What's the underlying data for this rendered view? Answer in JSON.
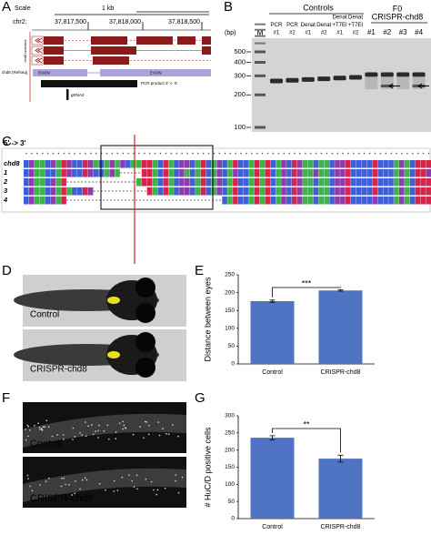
{
  "panel_labels": [
    "A",
    "B",
    "C",
    "D",
    "E",
    "F",
    "G"
  ],
  "genome_browser": {
    "scale_label": "Scale",
    "scale_bar": "1 kb",
    "chrom": "chr2:",
    "positions": [
      "37,817,500",
      "37,818,000",
      "37,818,500"
    ],
    "track_isoforms": "chd8 isoforms",
    "track_refseq": "chd8 (Refseq)",
    "exon_labels": [
      "EXON",
      "EXON"
    ],
    "pcr_product": "PCR product 3' <- 5'",
    "grna": "gRNA2"
  },
  "gel": {
    "group_controls": "Controls",
    "group_f0": "F0",
    "group_crispr": "CRISPR-chd8",
    "unit": "(bp)",
    "marker": "M",
    "lanes": [
      [
        "PCR",
        "#1"
      ],
      [
        "PCR",
        "#2"
      ],
      [
        "Denat",
        "#1"
      ],
      [
        "Denat",
        "#2"
      ],
      [
        "Denat",
        "+T7EI",
        "#1"
      ],
      [
        "Denat",
        "+T7EI",
        "#2"
      ],
      [
        "#1"
      ],
      [
        "#2"
      ],
      [
        "#3"
      ],
      [
        "#4"
      ]
    ],
    "ladder": [
      500,
      400,
      300,
      200,
      100
    ]
  },
  "alignment": {
    "direction": "5' -> 3'",
    "rows": [
      "chd8",
      "1",
      "2",
      "3",
      "4"
    ]
  },
  "images_d": [
    "Control",
    "CRISPR-chd8"
  ],
  "images_f": [
    "Control",
    "CRISPR-chd8"
  ],
  "chart_data": [
    {
      "type": "bar",
      "ylabel": "Distance between eyes",
      "categories": [
        "Control",
        "CRISPR-chd8"
      ],
      "values": [
        176,
        206
      ],
      "errors": [
        3,
        2
      ],
      "color": "#4f74c4",
      "significance": "***",
      "ylim": [
        0,
        250
      ],
      "yticks": [
        0,
        50,
        100,
        150,
        200,
        250
      ]
    },
    {
      "type": "bar",
      "ylabel": "# HuC/D positive cells",
      "categories": [
        "Control",
        "CRISPR-chd8"
      ],
      "values": [
        236,
        175
      ],
      "errors": [
        6,
        10
      ],
      "color": "#4f74c4",
      "significance": "**",
      "ylim": [
        0,
        300
      ],
      "yticks": [
        0,
        50,
        100,
        150,
        200,
        250,
        300
      ]
    }
  ]
}
